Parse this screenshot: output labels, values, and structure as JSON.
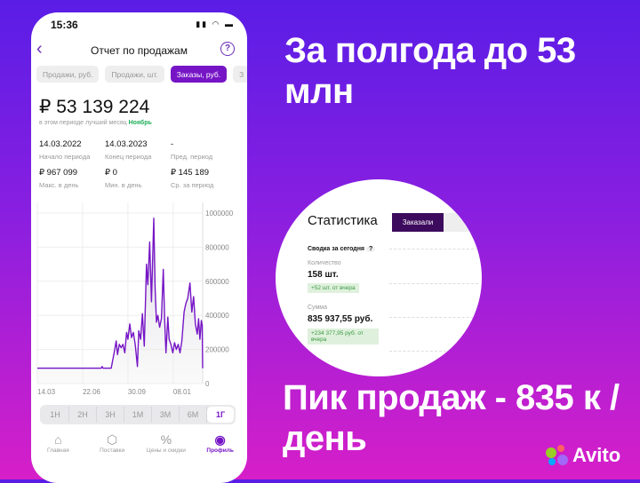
{
  "phone": {
    "status_time": "15:36",
    "title": "Отчет по продажам",
    "tabs": [
      {
        "label": "Продажи, руб."
      },
      {
        "label": "Продажи, шт."
      },
      {
        "label": "Заказы, руб."
      },
      {
        "label": "З"
      }
    ],
    "active_tab": 2,
    "total": "₽ 53 139 224",
    "best_month_prefix": "в этом периоде лучший месяц",
    "best_month": "Ноябрь",
    "stats": [
      {
        "value": "14.03.2022",
        "label": "Начало периода"
      },
      {
        "value": "14.03.2023",
        "label": "Конец периода"
      },
      {
        "value": "-",
        "label": "Пред. период"
      },
      {
        "value": "₽ 967 099",
        "label": "Макс. в день"
      },
      {
        "value": "₽ 0",
        "label": "Мин. в день"
      },
      {
        "value": "₽ 145 189",
        "label": "Ср. за период"
      }
    ],
    "ranges": [
      "1Н",
      "2Н",
      "3Н",
      "1М",
      "3М",
      "6М",
      "1Г"
    ],
    "active_range": "1Г",
    "nav": [
      {
        "label": "Главная",
        "icon": "home-icon"
      },
      {
        "label": "Поставки",
        "icon": "box-icon"
      },
      {
        "label": "Цены и скидки",
        "icon": "percent-icon"
      },
      {
        "label": "Профиль",
        "icon": "profile-icon"
      }
    ],
    "active_nav": 3
  },
  "chart_data": {
    "type": "area",
    "x_ticks": [
      "14.03",
      "22.06",
      "30.09",
      "08.01"
    ],
    "x_tick_dates": [
      "2022-03-14",
      "2022-06-22",
      "2022-09-30",
      "2023-01-08"
    ],
    "y_ticks": [
      "0",
      "200000",
      "400000",
      "600000",
      "800000",
      "1000000"
    ],
    "ylim": [
      0,
      1000000
    ],
    "xlim": [
      "2022-03-14",
      "2023-03-14"
    ],
    "grid": true,
    "color": "#7615c6",
    "points": [
      [
        "2022-03-14",
        90000
      ],
      [
        "2022-08-02",
        90000
      ],
      [
        "2022-08-04",
        100000
      ],
      [
        "2022-08-06",
        90000
      ],
      [
        "2022-08-24",
        90000
      ],
      [
        "2022-09-01",
        200000
      ],
      [
        "2022-09-04",
        250000
      ],
      [
        "2022-09-07",
        170000
      ],
      [
        "2022-09-11",
        230000
      ],
      [
        "2022-09-15",
        210000
      ],
      [
        "2022-09-19",
        230000
      ],
      [
        "2022-09-23",
        180000
      ],
      [
        "2022-09-27",
        300000
      ],
      [
        "2022-09-30",
        260000
      ],
      [
        "2022-10-04",
        350000
      ],
      [
        "2022-10-08",
        270000
      ],
      [
        "2022-10-12",
        300000
      ],
      [
        "2022-10-16",
        230000
      ],
      [
        "2022-10-21",
        100000
      ],
      [
        "2022-10-24",
        310000
      ],
      [
        "2022-10-28",
        260000
      ],
      [
        "2022-11-01",
        410000
      ],
      [
        "2022-11-05",
        220000
      ],
      [
        "2022-11-10",
        700000
      ],
      [
        "2022-11-13",
        580000
      ],
      [
        "2022-11-17",
        830000
      ],
      [
        "2022-11-21",
        480000
      ],
      [
        "2022-11-26",
        970000
      ],
      [
        "2022-11-29",
        560000
      ],
      [
        "2022-12-02",
        360000
      ],
      [
        "2022-12-05",
        400000
      ],
      [
        "2022-12-09",
        330000
      ],
      [
        "2022-12-13",
        380000
      ],
      [
        "2022-12-17",
        670000
      ],
      [
        "2022-12-20",
        380000
      ],
      [
        "2022-12-23",
        180000
      ],
      [
        "2022-12-27",
        390000
      ],
      [
        "2022-12-30",
        260000
      ],
      [
        "2023-01-03",
        230000
      ],
      [
        "2023-01-07",
        180000
      ],
      [
        "2023-01-11",
        240000
      ],
      [
        "2023-01-15",
        200000
      ],
      [
        "2023-01-19",
        230000
      ],
      [
        "2023-01-23",
        180000
      ],
      [
        "2023-01-27",
        250000
      ],
      [
        "2023-02-01",
        420000
      ],
      [
        "2023-02-05",
        470000
      ],
      [
        "2023-02-09",
        500000
      ],
      [
        "2023-02-14",
        590000
      ],
      [
        "2023-02-18",
        420000
      ],
      [
        "2023-02-22",
        510000
      ],
      [
        "2023-02-26",
        350000
      ],
      [
        "2023-03-02",
        290000
      ],
      [
        "2023-03-05",
        380000
      ],
      [
        "2023-03-08",
        260000
      ],
      [
        "2023-03-11",
        370000
      ],
      [
        "2023-03-13",
        340000
      ],
      [
        "2023-03-14",
        90000
      ]
    ]
  },
  "headline_top": "За полгода до 53 млн",
  "headline_bottom": "Пик продаж - 835 к / день",
  "inset": {
    "title": "Статистика",
    "tab": "Заказали",
    "summary": "Сводка за сегодня",
    "help": "?",
    "qty_label": "Количество",
    "qty": "158 шт.",
    "qty_delta": "+52 шт. от вчера",
    "sum_label": "Сумма",
    "sum": "835 937,55 руб.",
    "sum_delta": "+234 377,95 руб. от вчера"
  },
  "brand": "Avito"
}
